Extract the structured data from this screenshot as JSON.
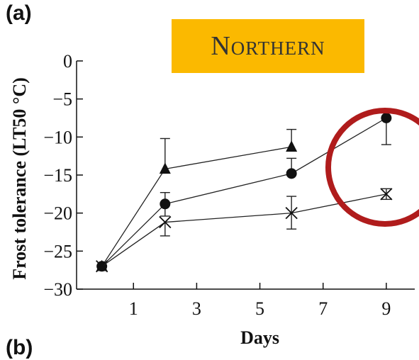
{
  "panel_label": "(a)",
  "panel_label_bottom": "(b)",
  "region_badge": {
    "text": "Northern",
    "color": "#fbb900"
  },
  "highlight_circle_color": "#b01c1c",
  "chart_data": {
    "type": "line",
    "xlabel": "Days",
    "ylabel": "Frost tolerance (LT50 °C)",
    "xlim": [
      -0.8,
      9.9
    ],
    "ylim": [
      -30,
      0
    ],
    "xticks": [
      1,
      3,
      5,
      7,
      9
    ],
    "yticks": [
      0,
      -5,
      -10,
      -15,
      -20,
      -25,
      -30
    ],
    "ytick_labels": [
      "0",
      "−5",
      "−10",
      "−15",
      "−20",
      "−25",
      "−30"
    ],
    "series": [
      {
        "marker": "triangle",
        "x": [
          0,
          2,
          6
        ],
        "y": [
          -27,
          -14.2,
          -11.3
        ],
        "err_up": [
          0,
          4,
          2.3
        ],
        "err_down": [
          0,
          0,
          0
        ]
      },
      {
        "marker": "circle",
        "x": [
          0,
          2,
          6,
          9
        ],
        "y": [
          -27,
          -18.8,
          -14.8,
          -7.5
        ],
        "err_up": [
          0,
          1.5,
          2,
          0
        ],
        "err_down": [
          0,
          1.6,
          0,
          3.5
        ]
      },
      {
        "marker": "cross",
        "x": [
          0,
          2,
          6,
          9
        ],
        "y": [
          -27,
          -21.2,
          -20,
          -17.5
        ],
        "err_up": [
          0,
          0,
          2.2,
          0.7
        ],
        "err_down": [
          0,
          1.8,
          2.1,
          0.7
        ]
      }
    ]
  }
}
